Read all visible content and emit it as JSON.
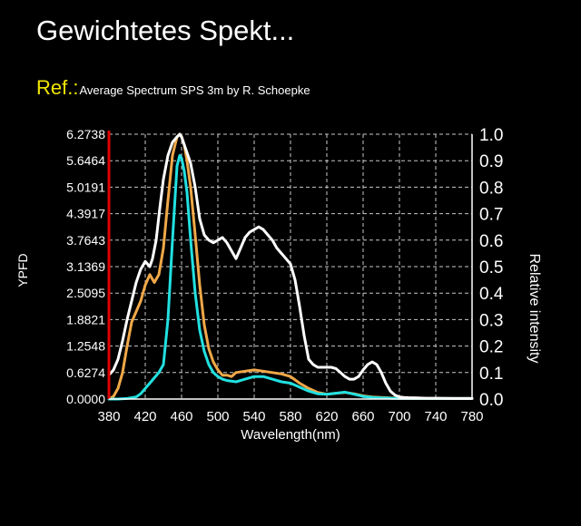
{
  "header": {
    "title": "Gewichtetes Spekt...",
    "ref_label": "Ref.:",
    "ref_text": "Average Spectrum SPS 3m by R. Schoepke"
  },
  "colors": {
    "background": "#000000",
    "ref_label": "#f2e600",
    "left_axis": "#e00000",
    "grid": "#c8c8c8",
    "white_series": "#ffffff",
    "orange_series": "#f0a848",
    "cyan_series": "#22e0e0"
  },
  "chart_data": {
    "type": "line",
    "xlabel": "Wavelength(nm)",
    "ylabel_left": "YPFD",
    "ylabel_right": "Relative intensity",
    "xlim": [
      380,
      780
    ],
    "ylim_left": [
      0,
      6.2738
    ],
    "ylim_right": [
      0,
      1.0
    ],
    "x_ticks": [
      "380",
      "420",
      "460",
      "500",
      "540",
      "580",
      "620",
      "660",
      "700",
      "740",
      "780"
    ],
    "y_left_ticks": [
      "0.0000",
      "0.6274",
      "1.2548",
      "1.8821",
      "2.5095",
      "3.1369",
      "3.7643",
      "4.3917",
      "5.0191",
      "5.6464",
      "6.2738"
    ],
    "y_right_ticks": [
      "0.0",
      "0.1",
      "0.2",
      "0.3",
      "0.4",
      "0.5",
      "0.6",
      "0.7",
      "0.8",
      "0.9",
      "1.0"
    ],
    "grid": true,
    "series": [
      {
        "key": "white",
        "x": [
          380,
          385,
          390,
          395,
          400,
          405,
          410,
          415,
          420,
          425,
          428,
          432,
          436,
          440,
          445,
          450,
          455,
          458,
          460,
          463,
          466,
          470,
          475,
          480,
          485,
          490,
          495,
          500,
          505,
          510,
          515,
          520,
          525,
          530,
          535,
          540,
          545,
          550,
          555,
          560,
          565,
          570,
          575,
          580,
          585,
          590,
          595,
          600,
          605,
          610,
          615,
          620,
          625,
          630,
          635,
          640,
          645,
          650,
          655,
          660,
          665,
          670,
          675,
          680,
          685,
          690,
          695,
          700,
          705,
          710,
          720,
          730,
          740,
          760,
          780
        ],
        "y": [
          0.09,
          0.11,
          0.15,
          0.22,
          0.3,
          0.37,
          0.44,
          0.49,
          0.52,
          0.5,
          0.53,
          0.6,
          0.72,
          0.83,
          0.92,
          0.97,
          0.99,
          1.0,
          0.99,
          0.96,
          0.93,
          0.89,
          0.8,
          0.68,
          0.62,
          0.6,
          0.59,
          0.6,
          0.61,
          0.59,
          0.56,
          0.53,
          0.57,
          0.61,
          0.63,
          0.64,
          0.65,
          0.64,
          0.62,
          0.6,
          0.57,
          0.55,
          0.53,
          0.51,
          0.45,
          0.35,
          0.24,
          0.15,
          0.13,
          0.12,
          0.12,
          0.12,
          0.12,
          0.115,
          0.1,
          0.085,
          0.075,
          0.075,
          0.085,
          0.11,
          0.13,
          0.14,
          0.13,
          0.1,
          0.06,
          0.03,
          0.015,
          0.008,
          0.006,
          0.005,
          0.004,
          0.003,
          0.003,
          0.002,
          0.002
        ]
      },
      {
        "key": "orange",
        "x": [
          380,
          385,
          390,
          395,
          400,
          405,
          410,
          415,
          420,
          425,
          430,
          435,
          440,
          445,
          450,
          455,
          458,
          460,
          463,
          466,
          470,
          475,
          480,
          485,
          490,
          495,
          500,
          505,
          510,
          515,
          520,
          530,
          540,
          550,
          560,
          570,
          580,
          590,
          600,
          610,
          620,
          630,
          640,
          650,
          660,
          670,
          680,
          690,
          700,
          720,
          740,
          760,
          780
        ],
        "y": [
          0.0,
          0.01,
          0.04,
          0.1,
          0.2,
          0.29,
          0.33,
          0.37,
          0.43,
          0.47,
          0.44,
          0.47,
          0.57,
          0.75,
          0.92,
          0.99,
          1.0,
          0.99,
          0.96,
          0.9,
          0.8,
          0.62,
          0.43,
          0.28,
          0.19,
          0.14,
          0.11,
          0.09,
          0.09,
          0.085,
          0.1,
          0.105,
          0.11,
          0.105,
          0.1,
          0.095,
          0.085,
          0.06,
          0.04,
          0.025,
          0.018,
          0.022,
          0.025,
          0.02,
          0.012,
          0.008,
          0.006,
          0.004,
          0.003,
          0.002,
          0.002,
          0.002,
          0.002
        ]
      },
      {
        "key": "cyan",
        "x": [
          380,
          390,
          400,
          410,
          415,
          420,
          425,
          430,
          435,
          440,
          445,
          450,
          455,
          458,
          460,
          463,
          466,
          470,
          475,
          480,
          485,
          490,
          495,
          500,
          505,
          510,
          520,
          530,
          540,
          550,
          560,
          570,
          580,
          590,
          600,
          610,
          620,
          630,
          640,
          650,
          660,
          670,
          680,
          690,
          700,
          720,
          740,
          760,
          780
        ],
        "y": [
          0.0,
          0.0,
          0.002,
          0.008,
          0.02,
          0.04,
          0.06,
          0.08,
          0.1,
          0.13,
          0.3,
          0.6,
          0.88,
          0.92,
          0.91,
          0.86,
          0.78,
          0.6,
          0.4,
          0.26,
          0.18,
          0.13,
          0.1,
          0.085,
          0.075,
          0.07,
          0.065,
          0.075,
          0.085,
          0.085,
          0.075,
          0.065,
          0.06,
          0.045,
          0.03,
          0.02,
          0.018,
          0.022,
          0.026,
          0.018,
          0.01,
          0.006,
          0.004,
          0.003,
          0.002,
          0.002,
          0.002,
          0.002,
          0.002
        ]
      }
    ]
  }
}
